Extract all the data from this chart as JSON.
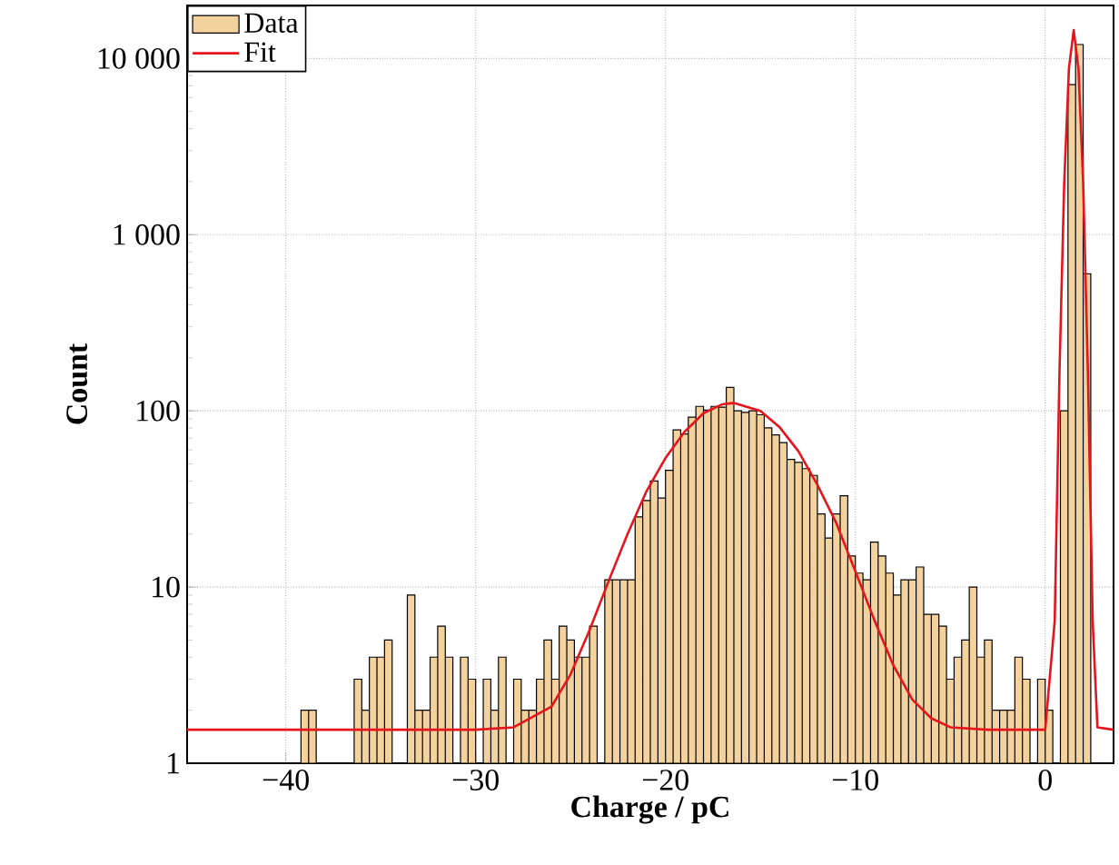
{
  "chart_data": {
    "type": "histogram",
    "xlabel": "Charge / pC",
    "ylabel": "Count",
    "log": "y",
    "grid": true,
    "legend": "top left",
    "xlim": [
      -45.2,
      3.6
    ],
    "ylim": [
      1,
      20000
    ],
    "xticks": [
      {
        "value": -40,
        "label": "−40"
      },
      {
        "value": -30,
        "label": "−30"
      },
      {
        "value": -20,
        "label": "−20"
      },
      {
        "value": -10,
        "label": "−10"
      },
      0
    ],
    "yticks": [
      1,
      10,
      100,
      {
        "value": 1000,
        "label": "1 000"
      },
      {
        "value": 10000,
        "label": "10 000"
      }
    ],
    "bins": [
      -39.2,
      -38.8,
      -38.4,
      -38,
      -37.6,
      -37.2,
      -36.8,
      -36.4,
      -36,
      -35.6,
      -35.2,
      -34.8,
      -34.4,
      -34,
      -33.6,
      -33.2,
      -32.8,
      -32.4,
      -32,
      -31.6,
      -31.2,
      -30.8,
      -30.4,
      -30,
      -29.6,
      -29.2,
      -28.8,
      -28.4,
      -28,
      -27.6,
      -27.2,
      -26.8,
      -26.4,
      -26,
      -25.6,
      -25.2,
      -24.8,
      -24.4,
      -24,
      -23.6,
      -23.2,
      -22.8,
      -22.4,
      -22,
      -21.6,
      -21.2,
      -20.8,
      -20.4,
      -20,
      -19.6,
      -19.2,
      -18.8,
      -18.4,
      -18,
      -17.6,
      -17.2,
      -16.8,
      -16.4,
      -16,
      -15.6,
      -15.2,
      -14.8,
      -14.4,
      -14,
      -13.6,
      -13.2,
      -12.8,
      -12.4,
      -12,
      -11.6,
      -11.2,
      -10.8,
      -10.4,
      -10,
      -9.6,
      -9.2,
      -8.8,
      -8.4,
      -8,
      -7.6,
      -7.2,
      -6.8,
      -6.4,
      -6,
      -5.6,
      -5.2,
      -4.8,
      -4.4,
      -4,
      -3.6,
      -3.2,
      -2.8,
      -2.4,
      -2,
      -1.6,
      -1.2,
      -0.8,
      -0.4,
      0,
      0.4,
      0.8,
      1.2,
      1.6,
      2,
      2.4
    ],
    "series": [
      {
        "name": "Data",
        "type": "histogram",
        "color": "#f3d29e",
        "values": [
          2,
          2,
          null,
          null,
          null,
          null,
          null,
          3,
          2,
          4,
          4,
          5,
          null,
          null,
          9,
          2,
          2,
          4,
          6,
          4,
          null,
          4,
          3,
          null,
          3,
          2,
          4,
          null,
          3,
          2,
          2,
          3,
          5,
          3,
          6,
          5,
          4,
          4,
          6,
          null,
          11,
          11,
          11,
          11,
          25,
          31,
          40,
          32,
          46,
          78,
          74,
          92,
          106,
          101,
          106,
          105,
          136,
          100,
          98,
          100,
          95,
          80,
          73,
          66,
          53,
          51,
          47,
          43,
          26,
          19,
          26,
          33,
          15,
          12,
          11,
          18,
          15,
          12,
          9,
          11,
          11,
          13,
          7,
          7,
          6,
          3,
          4,
          5,
          10,
          4,
          5,
          2,
          2,
          2,
          4,
          3,
          null,
          3,
          2,
          null,
          100,
          7100,
          12000,
          600
        ]
      },
      {
        "name": "Fit",
        "type": "line",
        "color": "#e8141b",
        "x": [
          -45.2,
          -30,
          -28,
          -26,
          -25,
          -24,
          -23,
          -22,
          -21,
          -20,
          -19,
          -18,
          -17,
          -16.4,
          -15,
          -14,
          -13,
          -12,
          -11,
          -10,
          -9,
          -8,
          -7,
          -6,
          -5,
          -3,
          0,
          0.5,
          0.75,
          1,
          1.25,
          1.5,
          1.75,
          2,
          2.25,
          2.5,
          2.75,
          3.6
        ],
        "values": [
          1.55,
          1.55,
          1.6,
          2.1,
          3.2,
          5.7,
          10.8,
          20,
          35,
          54,
          76,
          97,
          109,
          111,
          100,
          81,
          59,
          38,
          23,
          12.3,
          6.5,
          3.6,
          2.3,
          1.8,
          1.6,
          1.55,
          1.55,
          6.4,
          163,
          1960,
          8800,
          14500,
          8800,
          1960,
          163,
          6.4,
          1.6,
          1.55
        ]
      }
    ]
  }
}
